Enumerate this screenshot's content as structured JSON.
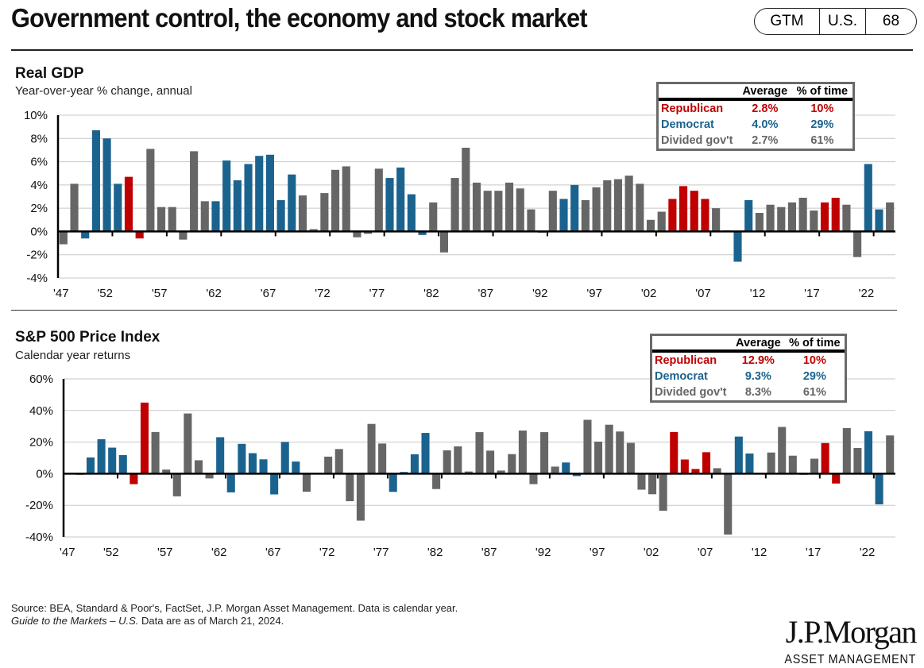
{
  "header": {
    "title": "Government control, the economy and stock market",
    "badge": [
      "GTM",
      "U.S.",
      "68"
    ]
  },
  "colors": {
    "republican": "#c00000",
    "democrat": "#1b638f",
    "divided": "#666666"
  },
  "gdp_panel": {
    "title": "Real GDP",
    "subtitle": "Year-over-year % change, annual",
    "stats": {
      "headers": [
        "",
        "Average",
        "% of time"
      ],
      "rows": [
        {
          "label": "Republican",
          "average": "2.8%",
          "pct_time": "10%",
          "party": "R"
        },
        {
          "label": "Democrat",
          "average": "4.0%",
          "pct_time": "29%",
          "party": "D"
        },
        {
          "label": "Divided gov't",
          "average": "2.7%",
          "pct_time": "61%",
          "party": "G"
        }
      ]
    }
  },
  "sp_panel": {
    "title": "S&P 500 Price Index",
    "subtitle": "Calendar year returns",
    "stats": {
      "headers": [
        "",
        "Average",
        "% of time"
      ],
      "rows": [
        {
          "label": "Republican",
          "average": "12.9%",
          "pct_time": "10%",
          "party": "R"
        },
        {
          "label": "Democrat",
          "average": "9.3%",
          "pct_time": "29%",
          "party": "D"
        },
        {
          "label": "Divided gov't",
          "average": "8.3%",
          "pct_time": "61%",
          "party": "G"
        }
      ]
    }
  },
  "chart_data": [
    {
      "type": "bar",
      "title": "Real GDP",
      "subtitle": "Year-over-year % change, annual",
      "xlabel": "",
      "ylabel": "",
      "ylim": [
        -4,
        10
      ],
      "yticks": [
        -4,
        -2,
        0,
        2,
        4,
        6,
        8,
        10
      ],
      "ytick_labels": [
        "-4%",
        "-2%",
        "0%",
        "2%",
        "4%",
        "6%",
        "8%",
        "10%"
      ],
      "xtick_labels": [
        "'47",
        "'52",
        "'57",
        "'62",
        "'67",
        "'72",
        "'77",
        "'82",
        "'87",
        "'92",
        "'97",
        "'02",
        "'07",
        "'12",
        "'17",
        "'22"
      ],
      "grid": true,
      "legend": "top-right",
      "x": [
        1947,
        1948,
        1949,
        1950,
        1951,
        1952,
        1953,
        1954,
        1955,
        1956,
        1957,
        1958,
        1959,
        1960,
        1961,
        1962,
        1963,
        1964,
        1965,
        1966,
        1967,
        1968,
        1969,
        1970,
        1971,
        1972,
        1973,
        1974,
        1975,
        1976,
        1977,
        1978,
        1979,
        1980,
        1981,
        1982,
        1983,
        1984,
        1985,
        1986,
        1987,
        1988,
        1989,
        1990,
        1991,
        1992,
        1993,
        1994,
        1995,
        1996,
        1997,
        1998,
        1999,
        2000,
        2001,
        2002,
        2003,
        2004,
        2005,
        2006,
        2007,
        2008,
        2009,
        2010,
        2011,
        2012,
        2013,
        2014,
        2015,
        2016,
        2017,
        2018,
        2019,
        2020,
        2021,
        2022,
        2023
      ],
      "values": [
        -1.1,
        4.1,
        -0.6,
        8.7,
        8.0,
        4.1,
        4.7,
        -0.6,
        7.1,
        2.1,
        2.1,
        -0.7,
        6.9,
        2.6,
        2.6,
        6.1,
        4.4,
        5.8,
        6.5,
        6.6,
        2.7,
        4.9,
        3.1,
        0.2,
        3.3,
        5.3,
        5.6,
        -0.5,
        -0.2,
        5.4,
        4.6,
        5.5,
        3.2,
        -0.3,
        2.5,
        -1.8,
        4.6,
        7.2,
        4.2,
        3.5,
        3.5,
        4.2,
        3.7,
        1.9,
        -0.1,
        3.5,
        2.8,
        4.0,
        2.7,
        3.8,
        4.4,
        4.5,
        4.8,
        4.1,
        1.0,
        1.7,
        2.8,
        3.9,
        3.5,
        2.8,
        2.0,
        0.1,
        -2.6,
        2.7,
        1.6,
        2.3,
        2.1,
        2.5,
        2.9,
        1.8,
        2.5,
        2.9,
        2.3,
        -2.2,
        5.8,
        1.9,
        2.5
      ],
      "party": [
        "G",
        "G",
        "D",
        "D",
        "D",
        "D",
        "R",
        "R",
        "G",
        "G",
        "G",
        "G",
        "G",
        "G",
        "D",
        "D",
        "D",
        "D",
        "D",
        "D",
        "D",
        "D",
        "G",
        "G",
        "G",
        "G",
        "G",
        "G",
        "G",
        "G",
        "D",
        "D",
        "D",
        "D",
        "G",
        "G",
        "G",
        "G",
        "G",
        "G",
        "G",
        "G",
        "G",
        "G",
        "G",
        "G",
        "D",
        "D",
        "G",
        "G",
        "G",
        "G",
        "G",
        "G",
        "G",
        "G",
        "R",
        "R",
        "R",
        "R",
        "G",
        "G",
        "D",
        "D",
        "G",
        "G",
        "G",
        "G",
        "G",
        "G",
        "R",
        "R",
        "G",
        "G",
        "D",
        "D",
        "G"
      ],
      "legend_entries": [
        "Republican",
        "Democrat",
        "Divided gov't"
      ]
    },
    {
      "type": "bar",
      "title": "S&P 500 Price Index",
      "subtitle": "Calendar year returns",
      "xlabel": "",
      "ylabel": "",
      "ylim": [
        -40,
        60
      ],
      "yticks": [
        -40,
        -20,
        0,
        20,
        40,
        60
      ],
      "ytick_labels": [
        "-40%",
        "-20%",
        "0%",
        "20%",
        "40%",
        "60%"
      ],
      "xtick_labels": [
        "'47",
        "'52",
        "'57",
        "'62",
        "'67",
        "'72",
        "'77",
        "'82",
        "'87",
        "'92",
        "'97",
        "'02",
        "'07",
        "'12",
        "'17",
        "'22"
      ],
      "grid": true,
      "legend": "top-right",
      "x": [
        1947,
        1948,
        1949,
        1950,
        1951,
        1952,
        1953,
        1954,
        1955,
        1956,
        1957,
        1958,
        1959,
        1960,
        1961,
        1962,
        1963,
        1964,
        1965,
        1966,
        1967,
        1968,
        1969,
        1970,
        1971,
        1972,
        1973,
        1974,
        1975,
        1976,
        1977,
        1978,
        1979,
        1980,
        1981,
        1982,
        1983,
        1984,
        1985,
        1986,
        1987,
        1988,
        1989,
        1990,
        1991,
        1992,
        1993,
        1994,
        1995,
        1996,
        1997,
        1998,
        1999,
        2000,
        2001,
        2002,
        2003,
        2004,
        2005,
        2006,
        2007,
        2008,
        2009,
        2010,
        2011,
        2012,
        2013,
        2014,
        2015,
        2016,
        2017,
        2018,
        2019,
        2020,
        2021,
        2022,
        2023
      ],
      "values": [
        0.0,
        -0.7,
        10.3,
        21.8,
        16.5,
        11.8,
        -6.6,
        45.0,
        26.4,
        2.6,
        -14.3,
        38.1,
        8.5,
        -3.0,
        23.1,
        -11.8,
        18.9,
        13.0,
        9.1,
        -13.1,
        20.1,
        7.7,
        -11.4,
        0.1,
        10.8,
        15.6,
        -17.4,
        -29.7,
        31.5,
        19.1,
        -11.5,
        1.1,
        12.3,
        25.8,
        -9.7,
        14.8,
        17.3,
        1.4,
        26.3,
        14.6,
        2.0,
        12.4,
        27.3,
        -6.6,
        26.3,
        4.5,
        7.1,
        -1.5,
        34.1,
        20.3,
        31.0,
        26.7,
        19.5,
        -10.1,
        -13.0,
        -23.4,
        26.4,
        9.0,
        3.0,
        13.6,
        3.5,
        -38.5,
        23.5,
        12.8,
        0.0,
        13.4,
        29.6,
        11.4,
        -0.7,
        9.5,
        19.4,
        -6.2,
        28.9,
        16.3,
        26.9,
        -19.4,
        24.2
      ],
      "party": [
        "G",
        "G",
        "D",
        "D",
        "D",
        "D",
        "R",
        "R",
        "G",
        "G",
        "G",
        "G",
        "G",
        "G",
        "D",
        "D",
        "D",
        "D",
        "D",
        "D",
        "D",
        "D",
        "G",
        "G",
        "G",
        "G",
        "G",
        "G",
        "G",
        "G",
        "D",
        "D",
        "D",
        "D",
        "G",
        "G",
        "G",
        "G",
        "G",
        "G",
        "G",
        "G",
        "G",
        "G",
        "G",
        "G",
        "D",
        "D",
        "G",
        "G",
        "G",
        "G",
        "G",
        "G",
        "G",
        "G",
        "R",
        "R",
        "R",
        "R",
        "G",
        "G",
        "D",
        "D",
        "G",
        "G",
        "G",
        "G",
        "G",
        "G",
        "R",
        "R",
        "G",
        "G",
        "D",
        "D",
        "G"
      ],
      "legend_entries": [
        "Republican",
        "Democrat",
        "Divided gov't"
      ]
    }
  ],
  "footer": {
    "source_line": "Source: BEA, Standard & Poor's, FactSet, J.P. Morgan Asset Management. Data is calendar year.",
    "guide_italic": "Guide to the Markets – U.S.",
    "guide_rest": " Data are as of March 21, 2024.",
    "logo_name": "J.P.Morgan",
    "logo_sub": "ASSET MANAGEMENT"
  }
}
